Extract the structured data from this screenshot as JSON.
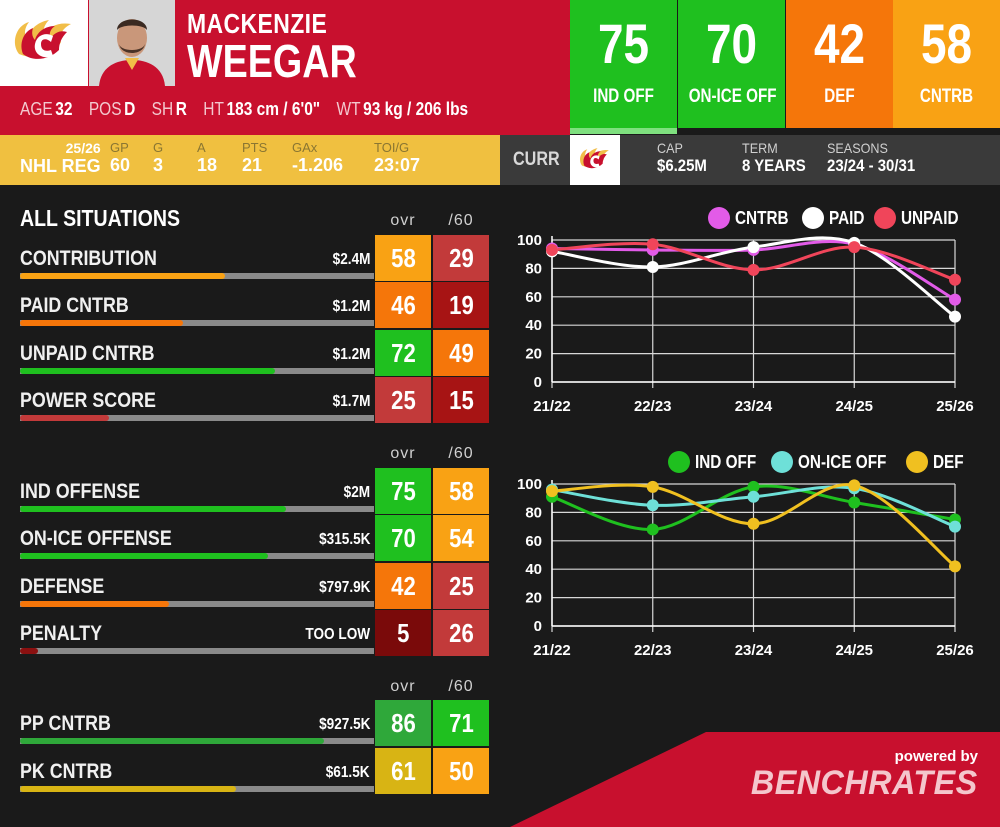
{
  "player": {
    "first_name": "MACKENZIE",
    "last_name": "WEEGAR",
    "bio": [
      {
        "key": "AGE",
        "value": "32"
      },
      {
        "key": "POS",
        "value": "D"
      },
      {
        "key": "SH",
        "value": "R"
      },
      {
        "key": "HT",
        "value": "183 cm / 6'0\""
      },
      {
        "key": "WT",
        "value": "93 kg / 206 lbs"
      }
    ]
  },
  "grades": [
    {
      "value": "75",
      "label": "IND OFF",
      "color": "#1fc01f",
      "under": "#7fe07f"
    },
    {
      "value": "70",
      "label": "ON-ICE OFF",
      "color": "#1fc01f",
      "under": "#1a1a1a"
    },
    {
      "value": "42",
      "label": "DEF",
      "color": "#f5760a",
      "under": "#1a1a1a"
    },
    {
      "value": "58",
      "label": "CNTRB",
      "color": "#f9a214",
      "under": "#1a1a1a"
    }
  ],
  "season_stats": {
    "season": "25/26",
    "league": "NHL REG",
    "cols": [
      {
        "key": "GP",
        "value": "60"
      },
      {
        "key": "G",
        "value": "3"
      },
      {
        "key": "A",
        "value": "18"
      },
      {
        "key": "PTS",
        "value": "21"
      },
      {
        "key": "GAx",
        "value": "-1.206"
      },
      {
        "key": "TOI/G",
        "value": "23:07"
      }
    ]
  },
  "contract": {
    "curr_label": "CURR",
    "cap_label": "CAP",
    "cap_value": "$6.25M",
    "term_label": "TERM",
    "term_value": "8 YEARS",
    "seasons_label": "SEASONS",
    "seasons_value": "23/24 - 30/31"
  },
  "sections": [
    {
      "title": "ALL SITUATIONS",
      "ovr_label": "ovr",
      "per60_label": "/60",
      "rows": [
        {
          "label": "CONTRIBUTION",
          "value": "$2.4M",
          "ovr": "58",
          "per60": "29",
          "fill": 0.58,
          "fill_color": "#f9a214",
          "ovr_color": "#f9a214",
          "per60_color": "#c23a3a"
        },
        {
          "label": "PAID CNTRB",
          "value": "$1.2M",
          "ovr": "46",
          "per60": "19",
          "fill": 0.46,
          "fill_color": "#f5760a",
          "ovr_color": "#f5760a",
          "per60_color": "#a71414"
        },
        {
          "label": "UNPAID CNTRB",
          "value": "$1.2M",
          "ovr": "72",
          "per60": "49",
          "fill": 0.72,
          "fill_color": "#1fc01f",
          "ovr_color": "#1fc01f",
          "per60_color": "#f5760a"
        },
        {
          "label": "POWER SCORE",
          "value": "$1.7M",
          "ovr": "25",
          "per60": "15",
          "fill": 0.25,
          "fill_color": "#c23a3a",
          "ovr_color": "#c23a3a",
          "per60_color": "#a71414"
        }
      ]
    },
    {
      "title": "",
      "ovr_label": "ovr",
      "per60_label": "/60",
      "rows": [
        {
          "label": "IND OFFENSE",
          "value": "$2M",
          "ovr": "75",
          "per60": "58",
          "fill": 0.75,
          "fill_color": "#1fc01f",
          "ovr_color": "#1fc01f",
          "per60_color": "#f9a214"
        },
        {
          "label": "ON-ICE OFFENSE",
          "value": "$315.5K",
          "ovr": "70",
          "per60": "54",
          "fill": 0.7,
          "fill_color": "#1fc01f",
          "ovr_color": "#1fc01f",
          "per60_color": "#f9a214"
        },
        {
          "label": "DEFENSE",
          "value": "$797.9K",
          "ovr": "42",
          "per60": "25",
          "fill": 0.42,
          "fill_color": "#f5760a",
          "ovr_color": "#f5760a",
          "per60_color": "#c23a3a"
        },
        {
          "label": "PENALTY",
          "value": "TOO LOW",
          "ovr": "5",
          "per60": "26",
          "fill": 0.05,
          "fill_color": "#8a1010",
          "ovr_color": "#7a0a0a",
          "per60_color": "#c23a3a"
        }
      ]
    },
    {
      "title": "",
      "ovr_label": "ovr",
      "per60_label": "/60",
      "rows": [
        {
          "label": "PP CNTRB",
          "value": "$927.5K",
          "ovr": "86",
          "per60": "71",
          "fill": 0.86,
          "fill_color": "#2fa83a",
          "ovr_color": "#2fa83a",
          "per60_color": "#1fc01f"
        },
        {
          "label": "PK CNTRB",
          "value": "$61.5K",
          "ovr": "61",
          "per60": "50",
          "fill": 0.61,
          "fill_color": "#d8b414",
          "ovr_color": "#d8b414",
          "per60_color": "#f9a214"
        }
      ]
    }
  ],
  "chart_data": [
    {
      "type": "line",
      "x": [
        "21/22",
        "22/23",
        "23/24",
        "24/25",
        "25/26"
      ],
      "ylim": [
        0,
        100
      ],
      "yticks": [
        0,
        20,
        40,
        60,
        80,
        100
      ],
      "grid": true,
      "legend": "top-right",
      "series": [
        {
          "name": "CNTRB",
          "color": "#e25be8",
          "values": [
            94,
            93,
            93,
            97,
            58
          ]
        },
        {
          "name": "PAID",
          "color": "#ffffff",
          "values": [
            92,
            81,
            95,
            98,
            46
          ]
        },
        {
          "name": "UNPAID",
          "color": "#f0455a",
          "values": [
            93,
            97,
            79,
            95,
            72
          ]
        }
      ]
    },
    {
      "type": "line",
      "x": [
        "21/22",
        "22/23",
        "23/24",
        "24/25",
        "25/26"
      ],
      "ylim": [
        0,
        100
      ],
      "yticks": [
        0,
        20,
        40,
        60,
        80,
        100
      ],
      "grid": true,
      "legend": "top-right",
      "series": [
        {
          "name": "IND OFF",
          "color": "#1fc01f",
          "values": [
            91,
            68,
            98,
            87,
            75
          ]
        },
        {
          "name": "ON-ICE OFF",
          "color": "#6ee0d8",
          "values": [
            96,
            85,
            91,
            97,
            70
          ]
        },
        {
          "name": "DEF",
          "color": "#f0c020",
          "values": [
            95,
            98,
            72,
            99,
            42
          ]
        }
      ]
    }
  ],
  "powered": {
    "by": "powered by",
    "brand": "BENCHRATES"
  }
}
